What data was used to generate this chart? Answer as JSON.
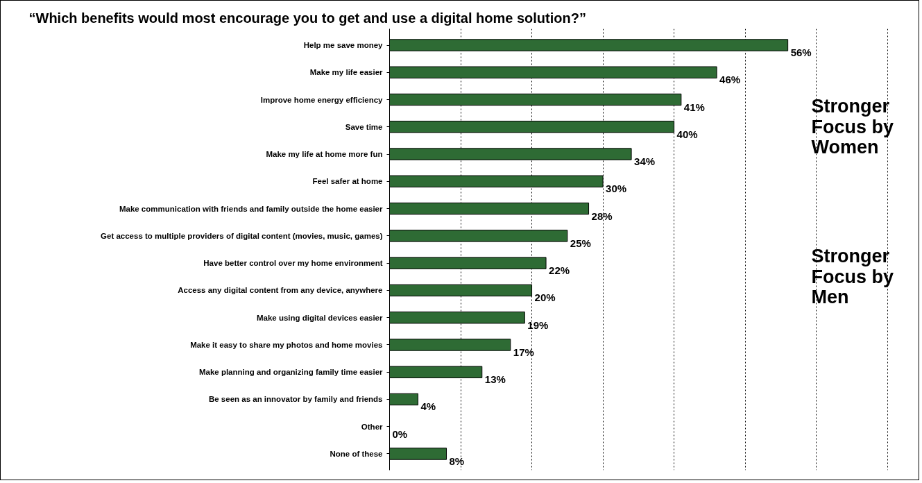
{
  "chart_data": {
    "type": "bar",
    "orientation": "horizontal",
    "title": "“Which benefits would most encourage you to get and use a digital home solution?”",
    "categories": [
      "Help me save money",
      "Make my life easier",
      "Improve home energy efficiency",
      "Save time",
      "Make my life at home more fun",
      "Feel safer at home",
      "Make communication with friends and family outside the home easier",
      "Get access to multiple providers of digital content (movies, music, games)",
      "Have better control over my home environment",
      "Access any digital content from any device, anywhere",
      "Make using digital devices easier",
      "Make it easy to share my photos and home movies",
      "Make planning and organizing family time easier",
      "Be seen as an innovator by family and friends",
      "Other",
      "None of these"
    ],
    "values": [
      56,
      46,
      41,
      40,
      34,
      30,
      28,
      25,
      22,
      20,
      19,
      17,
      13,
      4,
      0,
      8
    ],
    "value_labels": [
      "56%",
      "46%",
      "41%",
      "40%",
      "34%",
      "30%",
      "28%",
      "25%",
      "22%",
      "20%",
      "19%",
      "17%",
      "13%",
      "4%",
      "0%",
      "8%"
    ],
    "color": "#2e6b34",
    "grid": "x",
    "tick_labels": "y",
    "annotations": [
      "Stronger Focus by Women",
      "Stronger Focus by Men"
    ]
  }
}
